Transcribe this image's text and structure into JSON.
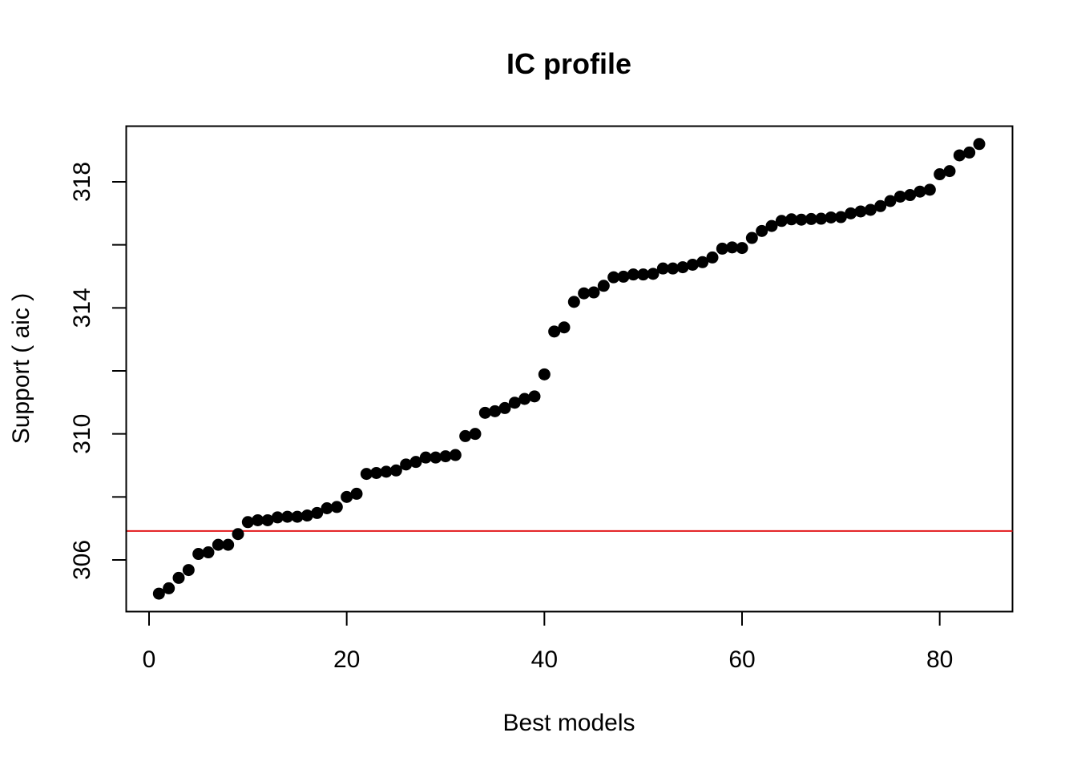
{
  "chart_data": {
    "type": "scatter",
    "title": "IC profile",
    "xlabel": "Best models",
    "ylabel": "Support ( aic )",
    "xlim": [
      0,
      84
    ],
    "ylim": [
      305.0,
      319.2
    ],
    "x_ticks": [
      0,
      20,
      40,
      60,
      80
    ],
    "x_tick_labels": [
      "0",
      "20",
      "40",
      "60",
      "80"
    ],
    "y_ticks": [
      306,
      308,
      310,
      312,
      314,
      316,
      318
    ],
    "y_tick_labels": [
      "306",
      "",
      "310",
      "",
      "314",
      "",
      "318"
    ],
    "grid": false,
    "reference_line": {
      "y": 306.92,
      "color": "#e31a1c"
    },
    "point_color": "#000000",
    "series": [
      {
        "x": [
          1,
          2,
          3,
          4,
          5,
          6,
          7,
          8,
          9,
          10,
          11,
          12,
          13,
          14,
          15,
          16,
          17,
          18,
          19,
          20,
          21,
          22,
          23,
          24,
          25,
          26,
          27,
          28,
          29,
          30,
          31,
          32,
          33,
          34,
          35,
          36,
          37,
          38,
          39,
          40,
          41,
          42,
          43,
          44,
          45,
          46,
          47,
          48,
          49,
          50,
          51,
          52,
          53,
          54,
          55,
          56,
          57,
          58,
          59,
          60,
          61,
          62,
          63,
          64,
          65,
          66,
          67,
          68,
          69,
          70,
          71,
          72,
          73,
          74,
          75,
          76,
          77,
          78,
          79,
          80,
          81,
          82,
          83,
          84
        ],
        "y": [
          304.93,
          305.1,
          305.43,
          305.68,
          306.19,
          306.24,
          306.48,
          306.48,
          306.82,
          307.2,
          307.26,
          307.26,
          307.35,
          307.37,
          307.37,
          307.41,
          307.49,
          307.64,
          307.68,
          308.0,
          308.1,
          308.73,
          308.76,
          308.8,
          308.84,
          309.03,
          309.11,
          309.25,
          309.25,
          309.29,
          309.33,
          309.93,
          310.0,
          310.67,
          310.72,
          310.82,
          310.99,
          311.11,
          311.19,
          311.89,
          313.25,
          313.38,
          314.19,
          314.46,
          314.49,
          314.7,
          314.97,
          314.99,
          315.06,
          315.06,
          315.08,
          315.25,
          315.25,
          315.29,
          315.37,
          315.45,
          315.6,
          315.88,
          315.92,
          315.9,
          316.22,
          316.44,
          316.6,
          316.76,
          316.81,
          316.8,
          316.82,
          316.83,
          316.87,
          316.88,
          317.0,
          317.06,
          317.11,
          317.23,
          317.39,
          317.53,
          317.58,
          317.69,
          317.75,
          318.24,
          318.34,
          318.84,
          318.93,
          319.2
        ]
      }
    ]
  }
}
